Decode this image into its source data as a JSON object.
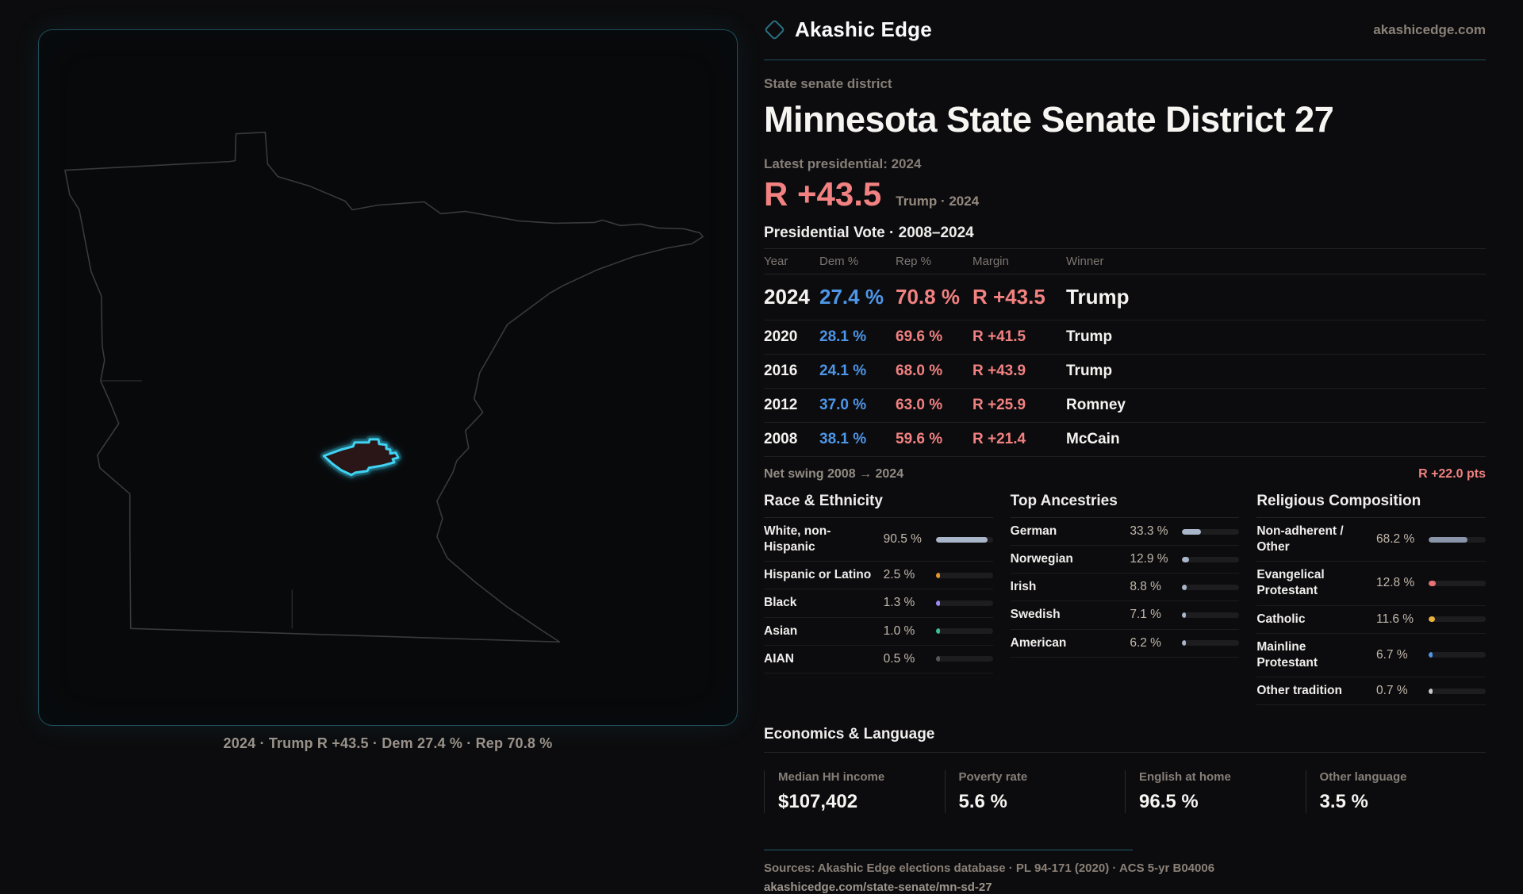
{
  "brand": {
    "name": "Akashic Edge",
    "site": "akashicedge.com"
  },
  "page": {
    "kicker": "State senate district",
    "title": "Minnesota State Senate District 27",
    "latest_label": "Latest presidential: 2024",
    "headline_margin": "R +43.5",
    "headline_sub": "Trump · 2024"
  },
  "map": {
    "caption": "2024 · Trump R +43.5 · Dem 27.4 % · Rep 70.8 %",
    "district_color": "#3fd2f2",
    "outline_color": "#3a3a3e"
  },
  "presidential_table": {
    "title": "Presidential Vote · 2008–2024",
    "columns": [
      "Year",
      "Dem %",
      "Rep %",
      "Margin",
      "Winner"
    ],
    "rows": [
      {
        "year": "2024",
        "dem": "27.4 %",
        "rep": "70.8 %",
        "margin": "R +43.5",
        "winner": "Trump",
        "big": true
      },
      {
        "year": "2020",
        "dem": "28.1 %",
        "rep": "69.6 %",
        "margin": "R +41.5",
        "winner": "Trump",
        "big": false
      },
      {
        "year": "2016",
        "dem": "24.1 %",
        "rep": "68.0 %",
        "margin": "R +43.9",
        "winner": "Trump",
        "big": false
      },
      {
        "year": "2012",
        "dem": "37.0 %",
        "rep": "63.0 %",
        "margin": "R +25.9",
        "winner": "Romney",
        "big": false
      },
      {
        "year": "2008",
        "dem": "38.1 %",
        "rep": "59.6 %",
        "margin": "R +21.4",
        "winner": "McCain",
        "big": false
      }
    ],
    "net_swing_label": "Net swing 2008 → 2024",
    "net_swing_value": "R +22.0 pts"
  },
  "panels": [
    {
      "title": "Race & Ethnicity",
      "rows": [
        {
          "label": "White, non-Hispanic",
          "value": "90.5 %",
          "pct": 90.5,
          "color": "#a9b6c9"
        },
        {
          "label": "Hispanic or Latino",
          "value": "2.5 %",
          "pct": 2.5,
          "color": "#e0962e"
        },
        {
          "label": "Black",
          "value": "1.3 %",
          "pct": 1.3,
          "color": "#9a8cf2"
        },
        {
          "label": "Asian",
          "value": "1.0 %",
          "pct": 1.0,
          "color": "#3bbd92"
        },
        {
          "label": "AIAN",
          "value": "0.5 %",
          "pct": 0.5,
          "color": "#55555a"
        }
      ]
    },
    {
      "title": "Top Ancestries",
      "rows": [
        {
          "label": "German",
          "value": "33.3 %",
          "pct": 33.3,
          "color": "#a9b6c9"
        },
        {
          "label": "Norwegian",
          "value": "12.9 %",
          "pct": 12.9,
          "color": "#a9b6c9"
        },
        {
          "label": "Irish",
          "value": "8.8 %",
          "pct": 8.8,
          "color": "#a9b6c9"
        },
        {
          "label": "Swedish",
          "value": "7.1 %",
          "pct": 7.1,
          "color": "#a9b6c9"
        },
        {
          "label": "American",
          "value": "6.2 %",
          "pct": 6.2,
          "color": "#a9b6c9"
        }
      ]
    },
    {
      "title": "Religious Composition",
      "rows": [
        {
          "label": "Non-adherent / Other",
          "value": "68.2 %",
          "pct": 68.2,
          "color": "#8a95aa"
        },
        {
          "label": "Evangelical Protestant",
          "value": "12.8 %",
          "pct": 12.8,
          "color": "#e57373"
        },
        {
          "label": "Catholic",
          "value": "11.6 %",
          "pct": 11.6,
          "color": "#ecb23e"
        },
        {
          "label": "Mainline Protestant",
          "value": "6.7 %",
          "pct": 6.7,
          "color": "#4e96e8"
        },
        {
          "label": "Other tradition",
          "value": "0.7 %",
          "pct": 0.7,
          "color": "#c9c9cc"
        }
      ]
    }
  ],
  "economics": {
    "title": "Economics & Language",
    "stats": [
      {
        "label": "Median HH income",
        "value": "$107,402"
      },
      {
        "label": "Poverty rate",
        "value": "5.6 %"
      },
      {
        "label": "English at home",
        "value": "96.5 %"
      },
      {
        "label": "Other language",
        "value": "3.5 %"
      }
    ]
  },
  "footer": {
    "sources": "Sources: Akashic Edge elections database · PL 94-171 (2020) · ACS 5-yr B04006",
    "url": "akashicedge.com/state-senate/mn-sd-27"
  }
}
